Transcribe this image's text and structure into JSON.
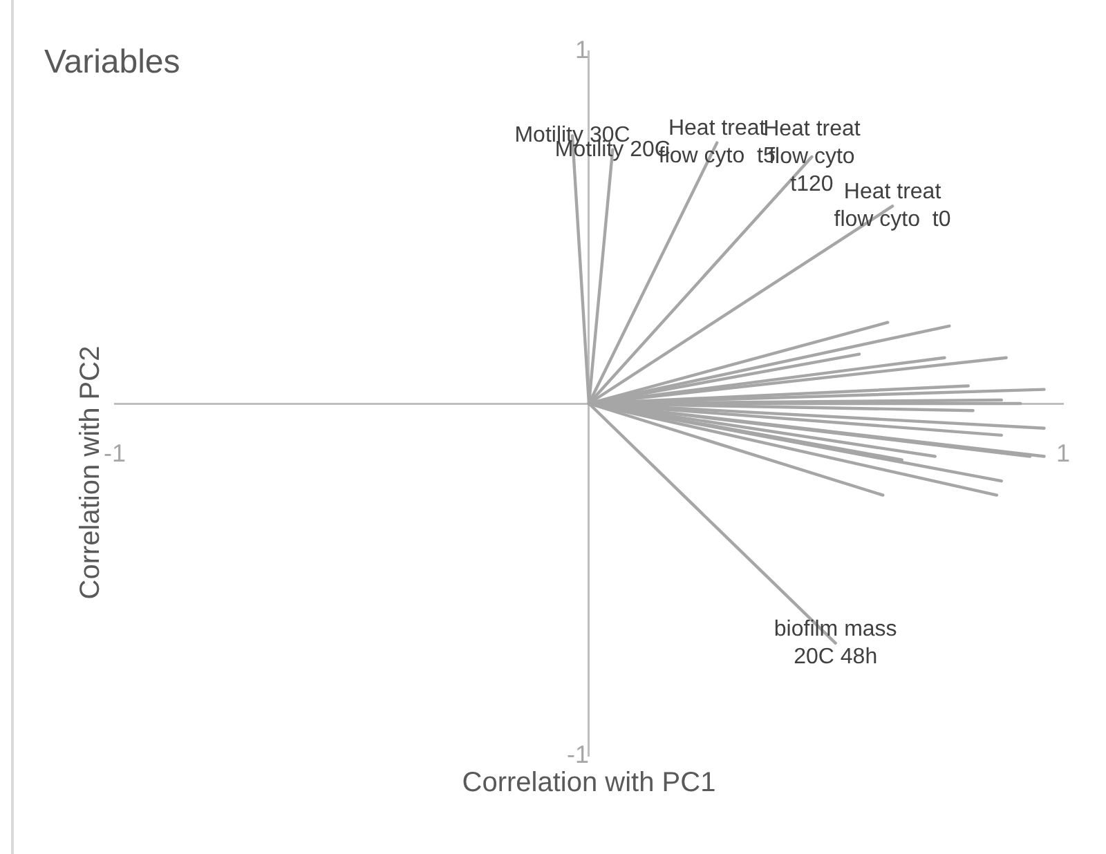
{
  "chart_data": {
    "type": "line",
    "title": "Variables",
    "xlabel": "Correlation with PC1",
    "ylabel": "Correlation with PC2",
    "xlim": [
      -1,
      1
    ],
    "ylim": [
      -1,
      1
    ],
    "xticks": [
      -1,
      1
    ],
    "yticks": [
      -1,
      1
    ],
    "grid": false,
    "legend": false,
    "marker": "none",
    "line_style": "solid",
    "series": [
      {
        "x": [
          0,
          -0.035
        ],
        "values": [
          0,
          0.76
        ],
        "color": "#a6a6a6"
      },
      {
        "x": [
          0,
          0.05
        ],
        "values": [
          0,
          0.72
        ],
        "color": "#a6a6a6"
      },
      {
        "x": [
          0,
          0.27
        ],
        "values": [
          0,
          0.74
        ],
        "color": "#a6a6a6"
      },
      {
        "x": [
          0,
          0.47
        ],
        "values": [
          0,
          0.7
        ],
        "color": "#a6a6a6"
      },
      {
        "x": [
          0,
          0.64
        ],
        "values": [
          0,
          0.56
        ],
        "color": "#a6a6a6"
      },
      {
        "x": [
          0,
          0.52
        ],
        "values": [
          0,
          -0.68
        ],
        "color": "#a6a6a6"
      },
      {
        "x": [
          0,
          0.63
        ],
        "values": [
          0,
          0.23
        ],
        "color": "#a6a6a6"
      },
      {
        "x": [
          0,
          0.76
        ],
        "values": [
          0,
          0.22
        ],
        "color": "#a6a6a6"
      },
      {
        "x": [
          0,
          0.57
        ],
        "values": [
          0,
          0.14
        ],
        "color": "#a6a6a6"
      },
      {
        "x": [
          0,
          0.75
        ],
        "values": [
          0,
          0.13
        ],
        "color": "#a6a6a6"
      },
      {
        "x": [
          0,
          0.88
        ],
        "values": [
          0,
          0.13
        ],
        "color": "#a6a6a6"
      },
      {
        "x": [
          0,
          0.96
        ],
        "values": [
          0,
          0.04
        ],
        "color": "#a6a6a6"
      },
      {
        "x": [
          0,
          0.8
        ],
        "values": [
          0,
          0.05
        ],
        "color": "#a6a6a6"
      },
      {
        "x": [
          0,
          0.91
        ],
        "values": [
          0,
          0
        ],
        "color": "#a6a6a6"
      },
      {
        "x": [
          0,
          0.87
        ],
        "values": [
          0,
          0.01
        ],
        "color": "#a6a6a6"
      },
      {
        "x": [
          0,
          0.81
        ],
        "values": [
          0,
          -0.02
        ],
        "color": "#a6a6a6"
      },
      {
        "x": [
          0,
          0.96
        ],
        "values": [
          0,
          -0.07
        ],
        "color": "#a6a6a6"
      },
      {
        "x": [
          0,
          0.87
        ],
        "values": [
          0,
          -0.09
        ],
        "color": "#a6a6a6"
      },
      {
        "x": [
          0,
          0.96
        ],
        "values": [
          0,
          -0.15
        ],
        "color": "#a6a6a6"
      },
      {
        "x": [
          0,
          0.93
        ],
        "values": [
          0,
          -0.15
        ],
        "color": "#a6a6a6"
      },
      {
        "x": [
          0,
          0.73
        ],
        "values": [
          0,
          -0.15
        ],
        "color": "#a6a6a6"
      },
      {
        "x": [
          0,
          0.66
        ],
        "values": [
          0,
          -0.16
        ],
        "color": "#a6a6a6"
      },
      {
        "x": [
          0,
          0.87
        ],
        "values": [
          0,
          -0.22
        ],
        "color": "#a6a6a6"
      },
      {
        "x": [
          0,
          0.86
        ],
        "values": [
          0,
          -0.26
        ],
        "color": "#a6a6a6"
      },
      {
        "x": [
          0,
          0.62
        ],
        "values": [
          0,
          -0.26
        ],
        "color": "#a6a6a6"
      }
    ],
    "annotations": [
      {
        "text": "Motility 30C",
        "x": -0.035,
        "y": 0.76
      },
      {
        "text": "Motility 20C",
        "x": 0.05,
        "y": 0.72
      },
      {
        "text": "Heat treat\nflow cyto  t5",
        "x": 0.27,
        "y": 0.74
      },
      {
        "text": "Heat treat\nflow cyto\nt120",
        "x": 0.47,
        "y": 0.7
      },
      {
        "text": "Heat treat\nflow cyto  t0",
        "x": 0.64,
        "y": 0.56
      },
      {
        "text": "biofilm mass\n20C 48h",
        "x": 0.52,
        "y": -0.68
      }
    ]
  }
}
